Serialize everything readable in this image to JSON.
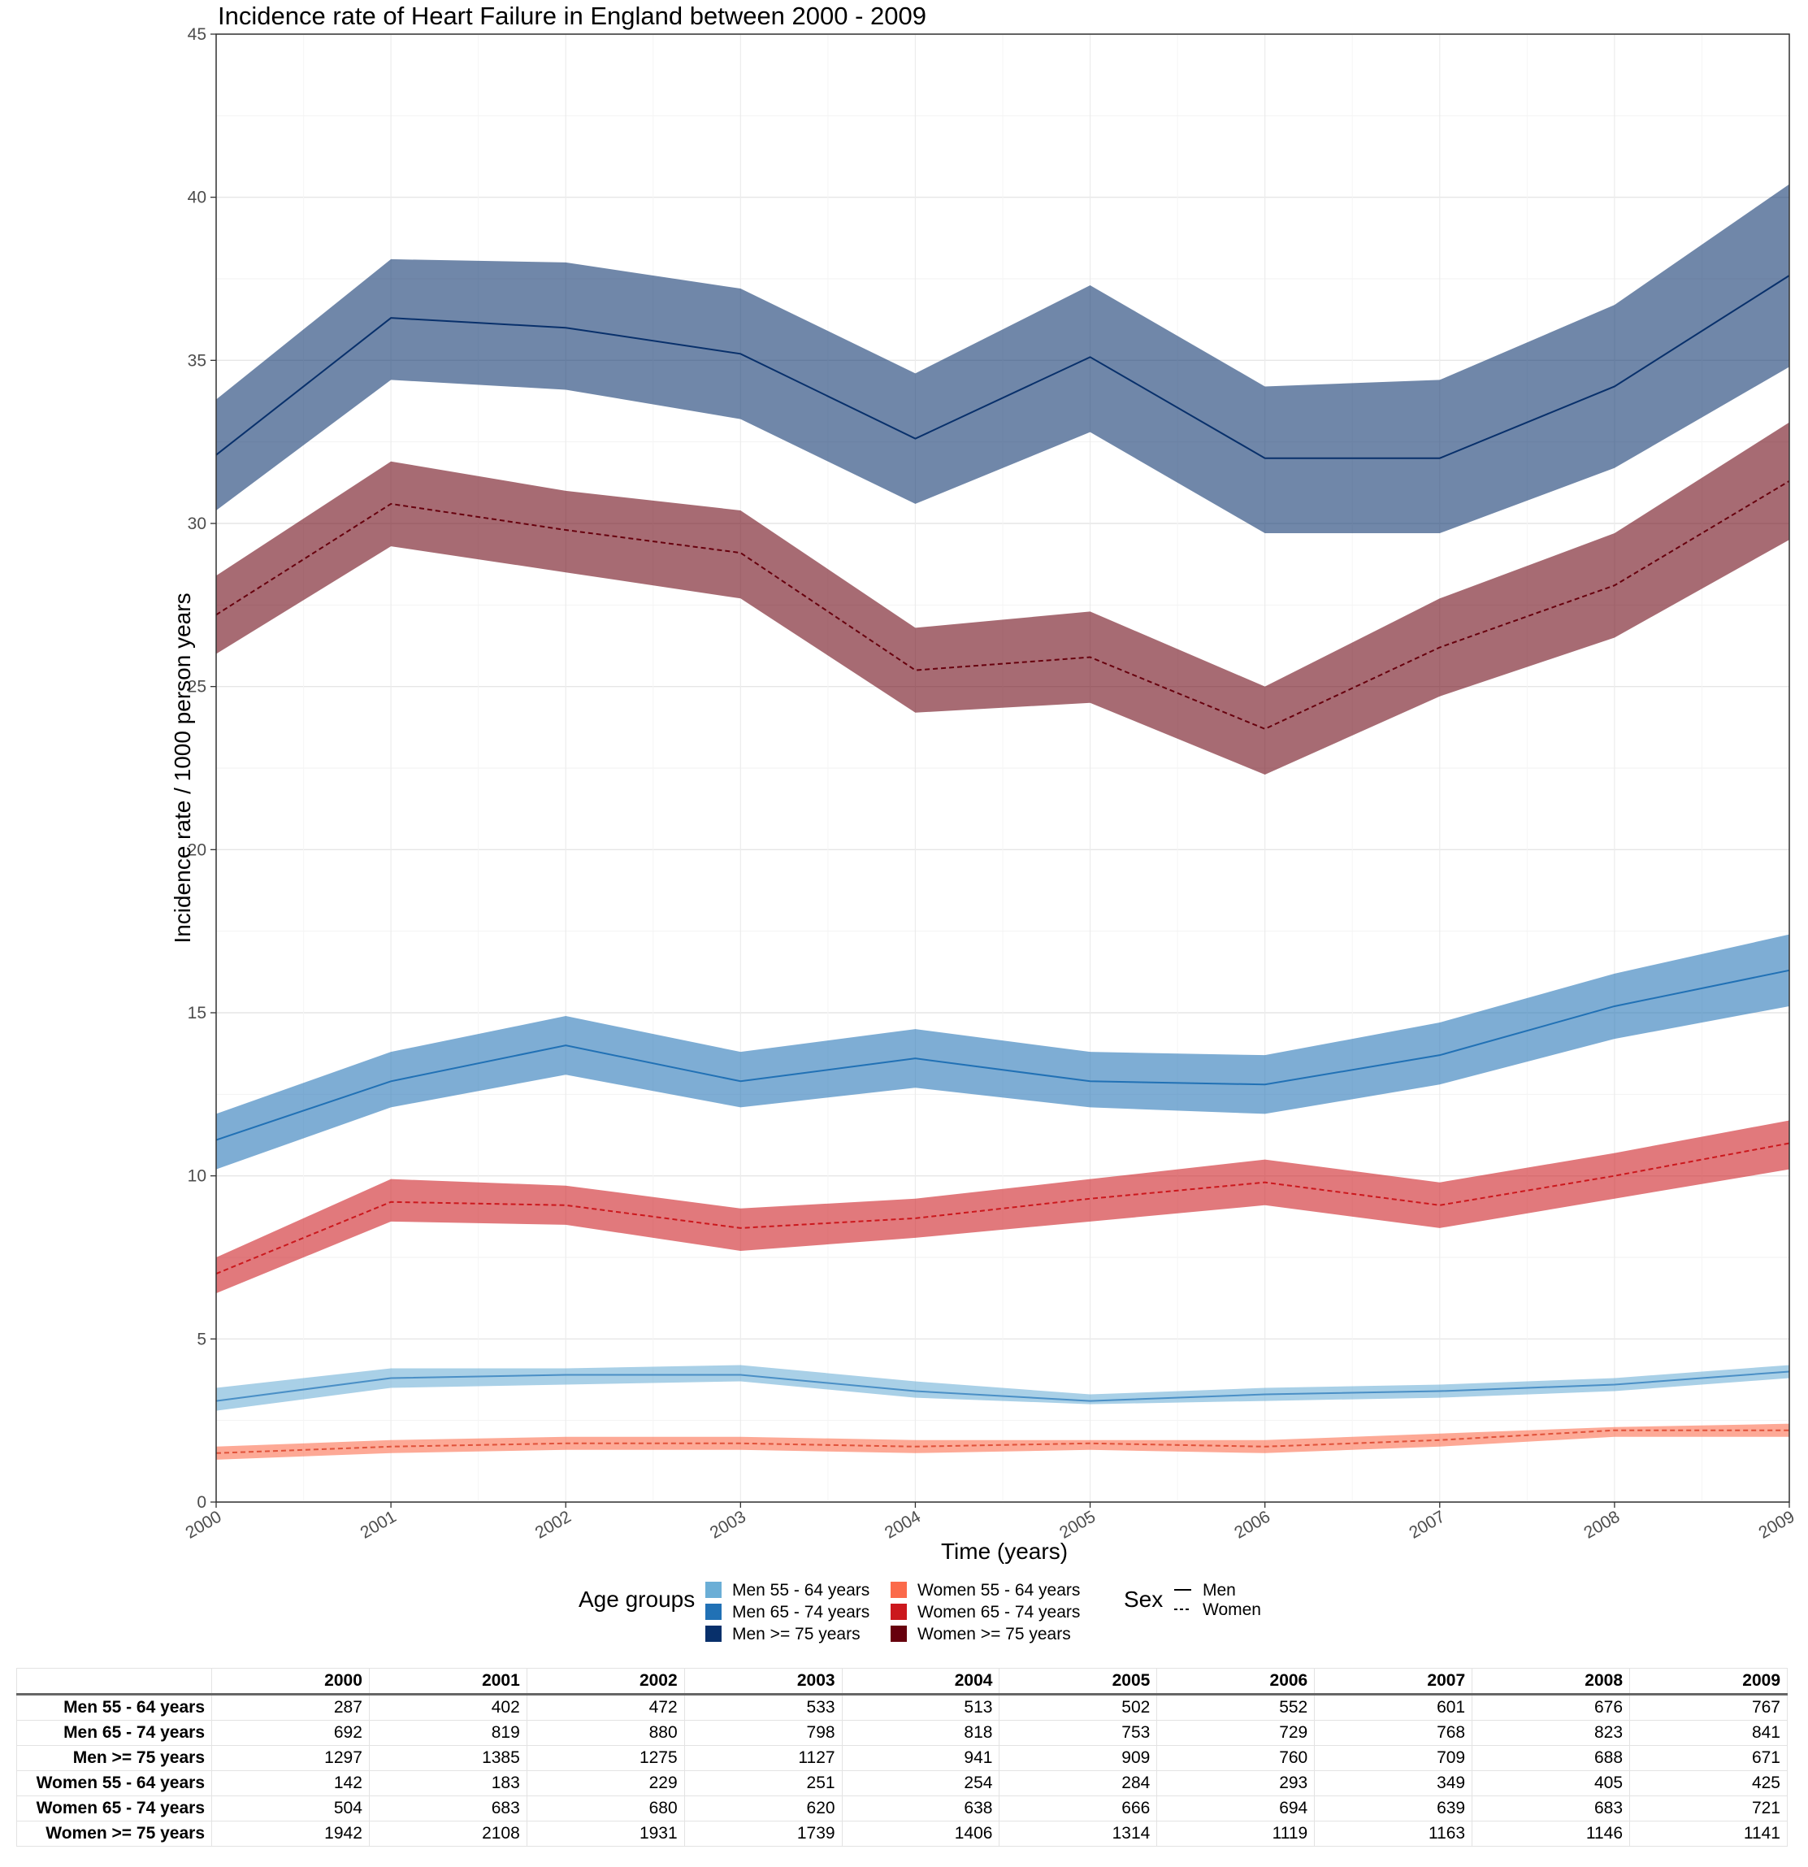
{
  "chart_data": {
    "type": "line",
    "title": "Incidence rate of Heart Failure in England between 2000 - 2009",
    "xlabel": "Time (years)",
    "ylabel": "Incidence rate / 1000 person years",
    "x": [
      2000,
      2001,
      2002,
      2003,
      2004,
      2005,
      2006,
      2007,
      2008,
      2009
    ],
    "x_tick_labels": [
      "2000",
      "2001",
      "2002",
      "2003",
      "2004",
      "2005",
      "2006",
      "2007",
      "2008",
      "2009"
    ],
    "ylim": [
      0,
      45
    ],
    "y_ticks": [
      0,
      5,
      10,
      15,
      20,
      25,
      30,
      35,
      40,
      45
    ],
    "y_tick_labels": [
      "0",
      "5",
      "10",
      "15",
      "20",
      "25",
      "30",
      "35",
      "40",
      "45"
    ],
    "grid": true,
    "series": [
      {
        "name": "Men 55 - 64 years",
        "sex": "Men",
        "color": "#6BAED6",
        "line_color": "#4A8FC6",
        "linestyle": "solid",
        "values": [
          3.1,
          3.8,
          3.9,
          3.9,
          3.4,
          3.1,
          3.3,
          3.4,
          3.6,
          4.0
        ],
        "lower": [
          2.8,
          3.5,
          3.6,
          3.7,
          3.2,
          3.0,
          3.1,
          3.2,
          3.4,
          3.8
        ],
        "upper": [
          3.5,
          4.1,
          4.1,
          4.2,
          3.7,
          3.3,
          3.5,
          3.6,
          3.8,
          4.2
        ]
      },
      {
        "name": "Men 65 - 74 years",
        "sex": "Men",
        "color": "#2171B5",
        "line_color": "#2171B5",
        "linestyle": "solid",
        "values": [
          11.1,
          12.9,
          14.0,
          12.9,
          13.6,
          12.9,
          12.8,
          13.7,
          15.2,
          16.3
        ],
        "lower": [
          10.2,
          12.1,
          13.1,
          12.1,
          12.7,
          12.1,
          11.9,
          12.8,
          14.2,
          15.2
        ],
        "upper": [
          11.9,
          13.8,
          14.9,
          13.8,
          14.5,
          13.8,
          13.7,
          14.7,
          16.2,
          17.4
        ]
      },
      {
        "name": "Men >= 75 years",
        "sex": "Men",
        "color": "#08306B",
        "line_color": "#08306B",
        "linestyle": "solid",
        "values": [
          32.1,
          36.3,
          36.0,
          35.2,
          32.6,
          35.1,
          32.0,
          32.0,
          34.2,
          37.6
        ],
        "lower": [
          30.4,
          34.4,
          34.1,
          33.2,
          30.6,
          32.8,
          29.7,
          29.7,
          31.7,
          34.8
        ],
        "upper": [
          33.8,
          38.1,
          38.0,
          37.2,
          34.6,
          37.3,
          34.2,
          34.4,
          36.7,
          40.4
        ]
      },
      {
        "name": "Women 55 - 64 years",
        "sex": "Women",
        "color": "#FB6A4A",
        "line_color": "#E0523A",
        "linestyle": "dashed",
        "values": [
          1.5,
          1.7,
          1.8,
          1.8,
          1.7,
          1.8,
          1.7,
          1.9,
          2.2,
          2.2
        ],
        "lower": [
          1.3,
          1.5,
          1.6,
          1.6,
          1.5,
          1.6,
          1.5,
          1.7,
          2.0,
          2.0
        ],
        "upper": [
          1.7,
          1.9,
          2.0,
          2.0,
          1.9,
          1.9,
          1.9,
          2.1,
          2.3,
          2.4
        ]
      },
      {
        "name": "Women 65 - 74 years",
        "sex": "Women",
        "color": "#CB181D",
        "line_color": "#CB181D",
        "linestyle": "dashed",
        "values": [
          7.0,
          9.2,
          9.1,
          8.4,
          8.7,
          9.3,
          9.8,
          9.1,
          10.0,
          11.0
        ],
        "lower": [
          6.4,
          8.6,
          8.5,
          7.7,
          8.1,
          8.6,
          9.1,
          8.4,
          9.3,
          10.2
        ],
        "upper": [
          7.5,
          9.9,
          9.7,
          9.0,
          9.3,
          9.9,
          10.5,
          9.8,
          10.7,
          11.7
        ]
      },
      {
        "name": "Women >= 75 years",
        "sex": "Women",
        "color": "#67000D",
        "line_color": "#67000D",
        "linestyle": "dashed",
        "values": [
          27.2,
          30.6,
          29.8,
          29.1,
          25.5,
          25.9,
          23.7,
          26.2,
          28.1,
          31.3
        ],
        "lower": [
          26.0,
          29.3,
          28.5,
          27.7,
          24.2,
          24.5,
          22.3,
          24.7,
          26.5,
          29.5
        ],
        "upper": [
          28.4,
          31.9,
          31.0,
          30.4,
          26.8,
          27.3,
          25.0,
          27.7,
          29.7,
          33.1
        ]
      }
    ],
    "legend": {
      "placement": "bottom",
      "age_title": "Age groups",
      "age_items": [
        {
          "label": "Men 55 - 64 years",
          "color": "#6BAED6"
        },
        {
          "label": "Men 65 - 74 years",
          "color": "#2171B5"
        },
        {
          "label": "Men >= 75 years",
          "color": "#08306B"
        },
        {
          "label": "Women 55 - 64 years",
          "color": "#FB6A4A"
        },
        {
          "label": "Women 65 - 74 years",
          "color": "#CB181D"
        },
        {
          "label": "Women >= 75 years",
          "color": "#67000D"
        }
      ],
      "sex_title": "Sex",
      "sex_items": [
        {
          "label": "Men",
          "linestyle": "solid"
        },
        {
          "label": "Women",
          "linestyle": "dashed"
        }
      ]
    }
  },
  "table": {
    "corner": "",
    "columns": [
      "2000",
      "2001",
      "2002",
      "2003",
      "2004",
      "2005",
      "2006",
      "2007",
      "2008",
      "2009"
    ],
    "rows": [
      {
        "label": "Men 55 - 64 years",
        "values": [
          "287",
          "402",
          "472",
          "533",
          "513",
          "502",
          "552",
          "601",
          "676",
          "767"
        ]
      },
      {
        "label": "Men 65 - 74 years",
        "values": [
          "692",
          "819",
          "880",
          "798",
          "818",
          "753",
          "729",
          "768",
          "823",
          "841"
        ]
      },
      {
        "label": "Men >= 75 years",
        "values": [
          "1297",
          "1385",
          "1275",
          "1127",
          "941",
          "909",
          "760",
          "709",
          "688",
          "671"
        ]
      },
      {
        "label": "Women 55 - 64 years",
        "values": [
          "142",
          "183",
          "229",
          "251",
          "254",
          "284",
          "293",
          "349",
          "405",
          "425"
        ]
      },
      {
        "label": "Women 65 - 74 years",
        "values": [
          "504",
          "683",
          "680",
          "620",
          "638",
          "666",
          "694",
          "639",
          "683",
          "721"
        ]
      },
      {
        "label": "Women >= 75 years",
        "values": [
          "1942",
          "2108",
          "1931",
          "1739",
          "1406",
          "1314",
          "1119",
          "1163",
          "1146",
          "1141"
        ]
      }
    ]
  }
}
